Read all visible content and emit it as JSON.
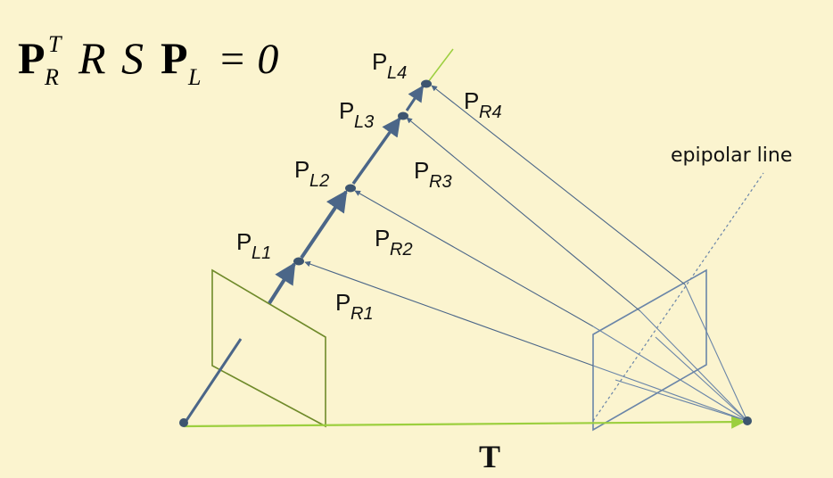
{
  "equation": {
    "P1": "P",
    "sup_T": "T",
    "sub_R": "R",
    "R": "R",
    "S": "S",
    "P2": "P",
    "sub_L": "L",
    "equals_zero": "= 0"
  },
  "points": [
    {
      "main": "P",
      "sub_left": "L1",
      "sub_right": "R1"
    },
    {
      "main": "P",
      "sub_left": "L2",
      "sub_right": "R2"
    },
    {
      "main": "P",
      "sub_left": "L3",
      "sub_right": "R3"
    },
    {
      "main": "P",
      "sub_left": "L4",
      "sub_right": "R4"
    }
  ],
  "labels": {
    "epipolar_line": "epipolar line",
    "baseline": "T"
  },
  "colors": {
    "background": "#fbf4cf",
    "left_plane": "#6f8a2a",
    "right_plane": "#6a85a8",
    "ray": "#4b6688",
    "baseline": "#9ccf3f",
    "point": "#3d5570"
  }
}
